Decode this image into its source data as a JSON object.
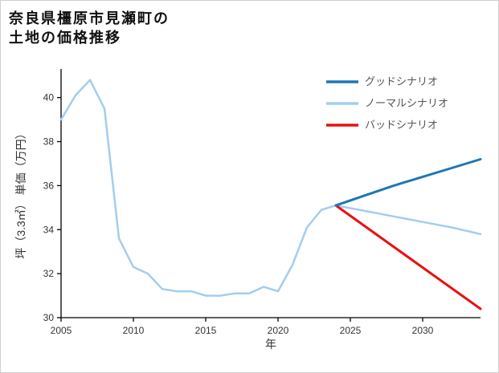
{
  "title": {
    "line1": "奈良県橿原市見瀬町の",
    "line2": "土地の価格推移"
  },
  "chart_data": {
    "type": "line",
    "title": "奈良県橿原市見瀬町の土地の価格推移",
    "xlabel": "年",
    "ylabel": "坪（3.3㎡） 単価（万円）",
    "xlim": [
      2005,
      2034
    ],
    "ylim": [
      30,
      41.3
    ],
    "xticks": [
      2005,
      2010,
      2015,
      2020,
      2025,
      2030
    ],
    "yticks": [
      30,
      32,
      34,
      36,
      38,
      40
    ],
    "grid": false,
    "legend_position": "upper-right",
    "legend": [
      {
        "key": "good",
        "label": "グッドシナリオ",
        "color": "#1f77b4"
      },
      {
        "key": "normal",
        "label": "ノーマルシナリオ",
        "color": "#a3cdee"
      },
      {
        "key": "bad",
        "label": "バッドシナリオ",
        "color": "#e91010"
      }
    ],
    "series": [
      {
        "key": "normal",
        "name": "ノーマルシナリオ",
        "color": "#a3cdee",
        "width": 2.5,
        "x": [
          2005,
          2006,
          2007,
          2008,
          2009,
          2010,
          2011,
          2012,
          2013,
          2014,
          2015,
          2016,
          2017,
          2018,
          2019,
          2020,
          2021,
          2022,
          2023,
          2024,
          2026,
          2028,
          2030,
          2032,
          2034
        ],
        "y": [
          39.0,
          40.1,
          40.8,
          39.5,
          33.6,
          32.3,
          32.0,
          31.3,
          31.2,
          31.2,
          31.0,
          31.0,
          31.1,
          31.1,
          31.4,
          31.2,
          32.4,
          34.1,
          34.9,
          35.1,
          34.85,
          34.6,
          34.35,
          34.1,
          33.8
        ]
      },
      {
        "key": "bad",
        "name": "バッドシナリオ",
        "color": "#e91010",
        "width": 3,
        "x": [
          2024,
          2029,
          2034
        ],
        "y": [
          35.1,
          32.75,
          30.4
        ]
      },
      {
        "key": "good",
        "name": "グッドシナリオ",
        "color": "#1f77b4",
        "width": 3,
        "x": [
          2024,
          2026,
          2028,
          2030,
          2032,
          2034
        ],
        "y": [
          35.1,
          35.55,
          36.0,
          36.4,
          36.8,
          37.2
        ]
      }
    ]
  }
}
